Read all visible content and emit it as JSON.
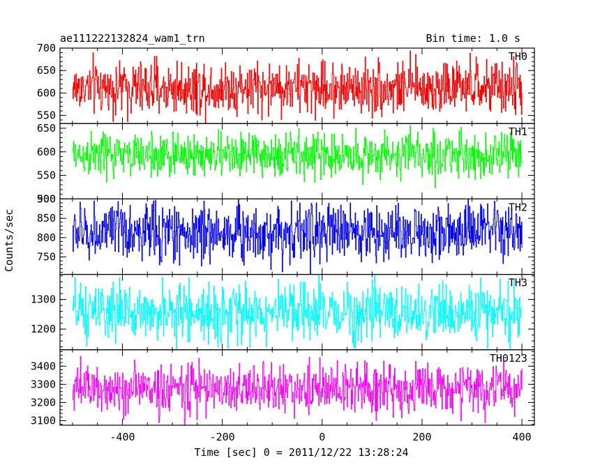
{
  "header": {
    "left_title": "ae111222132824_wam1_trn",
    "right_title": "Bin time: 1.0 s"
  },
  "chart_data": {
    "type": "line",
    "xlabel": "Time [sec] 0 = 2011/12/22 13:28:24",
    "ylabel": "Counts/sec",
    "xlim": [
      -525,
      425
    ],
    "x_range": [
      -500,
      400
    ],
    "x_step": 1.0,
    "x_ticks": [
      -400,
      -200,
      0,
      200,
      400
    ],
    "panels": [
      {
        "name": "TH0",
        "color": "#ff0000",
        "ylim": [
          532,
          700
        ],
        "y_ticks": [
          550,
          600,
          650,
          700
        ],
        "mean": 612,
        "spread": 30,
        "amp": 52
      },
      {
        "name": "TH1",
        "color": "#00ff00",
        "ylim": [
          500,
          660
        ],
        "y_ticks": [
          500,
          550,
          600,
          650
        ],
        "mean": 593,
        "spread": 24,
        "amp": 50
      },
      {
        "name": "TH2",
        "color": "#0000ff",
        "ylim": [
          705,
          900
        ],
        "y_ticks": [
          750,
          800,
          850,
          900
        ],
        "mean": 814,
        "spread": 38,
        "amp": 70
      },
      {
        "name": "TH3",
        "color": "#00ffff",
        "ylim": [
          1130,
          1385
        ],
        "y_ticks": [
          1200,
          1300
        ],
        "mean": 1255,
        "spread": 48,
        "amp": 85
      },
      {
        "name": "TH0123",
        "color": "#ff00ff",
        "ylim": [
          3075,
          3490
        ],
        "y_ticks": [
          3100,
          3200,
          3300,
          3400
        ],
        "mean": 3275,
        "spread": 70,
        "amp": 150
      }
    ]
  }
}
